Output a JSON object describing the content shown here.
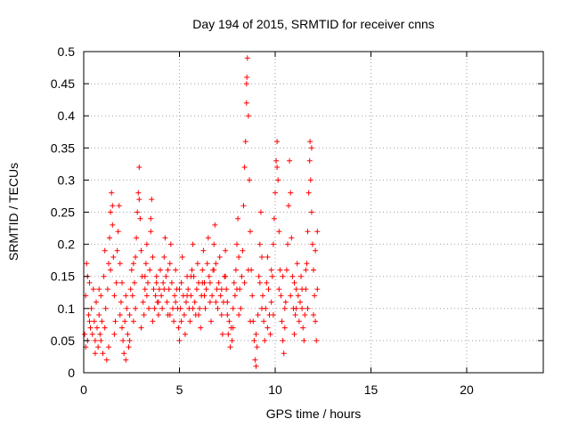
{
  "chart_data": {
    "type": "scatter",
    "title": "Day 194 of 2015, SRMTID for receiver cnns",
    "xlabel": "GPS time / hours",
    "ylabel": "SRMTID / TECUs",
    "xlim": [
      0,
      24
    ],
    "ylim": [
      0,
      0.5
    ],
    "xticks": [
      0,
      5,
      10,
      15,
      20
    ],
    "yticks": [
      0,
      0.05,
      0.1,
      0.15,
      0.2,
      0.25,
      0.3,
      0.35,
      0.4,
      0.45,
      0.5
    ],
    "xtick_labels": [
      "0",
      "5",
      "10",
      "15",
      "20"
    ],
    "ytick_labels": [
      "0",
      "0.05",
      "0.1",
      "0.15",
      "0.2",
      "0.25",
      "0.3",
      "0.35",
      "0.4",
      "0.45",
      "0.5"
    ],
    "grid": true,
    "marker": "+",
    "color": "#ff0000",
    "data_extent_hours": [
      0,
      12.2
    ],
    "series": [
      {
        "name": "SRMTID",
        "points": [
          [
            0.05,
            0.06
          ],
          [
            0.1,
            0.12
          ],
          [
            0.15,
            0.17
          ],
          [
            0.2,
            0.05
          ],
          [
            0.25,
            0.09
          ],
          [
            0.3,
            0.14
          ],
          [
            0.35,
            0.07
          ],
          [
            0.4,
            0.1
          ],
          [
            0.45,
            0.06
          ],
          [
            0.5,
            0.13
          ],
          [
            0.55,
            0.08
          ],
          [
            0.6,
            0.05
          ],
          [
            0.65,
            0.11
          ],
          [
            0.7,
            0.07
          ],
          [
            0.75,
            0.04
          ],
          [
            0.8,
            0.09
          ],
          [
            0.85,
            0.06
          ],
          [
            0.9,
            0.12
          ],
          [
            0.95,
            0.08
          ],
          [
            1.0,
            0.03
          ],
          [
            1.05,
            0.15
          ],
          [
            1.1,
            0.19
          ],
          [
            1.15,
            0.1
          ],
          [
            1.2,
            0.02
          ],
          [
            1.25,
            0.13
          ],
          [
            1.3,
            0.17
          ],
          [
            1.35,
            0.21
          ],
          [
            1.4,
            0.25
          ],
          [
            1.45,
            0.28
          ],
          [
            1.5,
            0.23
          ],
          [
            1.55,
            0.18
          ],
          [
            1.6,
            0.12
          ],
          [
            1.65,
            0.08
          ],
          [
            1.7,
            0.14
          ],
          [
            1.75,
            0.19
          ],
          [
            1.8,
            0.22
          ],
          [
            1.85,
            0.26
          ],
          [
            1.9,
            0.17
          ],
          [
            1.95,
            0.11
          ],
          [
            2.0,
            0.07
          ],
          [
            2.05,
            0.05
          ],
          [
            2.1,
            0.03
          ],
          [
            2.15,
            0.08
          ],
          [
            2.2,
            0.12
          ],
          [
            2.25,
            0.1
          ],
          [
            2.3,
            0.06
          ],
          [
            2.35,
            0.04
          ],
          [
            2.4,
            0.09
          ],
          [
            2.45,
            0.13
          ],
          [
            2.5,
            0.16
          ],
          [
            2.55,
            0.12
          ],
          [
            2.6,
            0.08
          ],
          [
            2.65,
            0.14
          ],
          [
            2.7,
            0.18
          ],
          [
            2.75,
            0.21
          ],
          [
            2.8,
            0.25
          ],
          [
            2.85,
            0.28
          ],
          [
            2.9,
            0.32
          ],
          [
            2.95,
            0.24
          ],
          [
            3.0,
            0.19
          ],
          [
            3.05,
            0.15
          ],
          [
            3.1,
            0.11
          ],
          [
            3.15,
            0.09
          ],
          [
            3.2,
            0.13
          ],
          [
            3.25,
            0.17
          ],
          [
            3.3,
            0.2
          ],
          [
            3.35,
            0.14
          ],
          [
            3.4,
            0.1
          ],
          [
            3.45,
            0.16
          ],
          [
            3.5,
            0.22
          ],
          [
            3.55,
            0.27
          ],
          [
            3.6,
            0.18
          ],
          [
            3.65,
            0.13
          ],
          [
            3.7,
            0.1
          ],
          [
            3.75,
            0.12
          ],
          [
            3.8,
            0.15
          ],
          [
            3.85,
            0.11
          ],
          [
            3.9,
            0.09
          ],
          [
            3.95,
            0.13
          ],
          [
            4.0,
            0.16
          ],
          [
            4.05,
            0.12
          ],
          [
            4.1,
            0.1
          ],
          [
            4.15,
            0.14
          ],
          [
            4.2,
            0.18
          ],
          [
            4.25,
            0.21
          ],
          [
            4.3,
            0.15
          ],
          [
            4.35,
            0.11
          ],
          [
            4.4,
            0.09
          ],
          [
            4.45,
            0.13
          ],
          [
            4.5,
            0.17
          ],
          [
            4.55,
            0.2
          ],
          [
            4.6,
            0.14
          ],
          [
            4.65,
            0.1
          ],
          [
            4.7,
            0.08
          ],
          [
            4.75,
            0.12
          ],
          [
            4.8,
            0.16
          ],
          [
            4.85,
            0.13
          ],
          [
            4.9,
            0.1
          ],
          [
            4.95,
            0.07
          ],
          [
            5.0,
            0.05
          ],
          [
            5.05,
            0.1
          ],
          [
            5.1,
            0.14
          ],
          [
            5.15,
            0.18
          ],
          [
            5.2,
            0.12
          ],
          [
            5.25,
            0.09
          ],
          [
            5.3,
            0.06
          ],
          [
            5.35,
            0.11
          ],
          [
            5.4,
            0.15
          ],
          [
            5.45,
            0.13
          ],
          [
            5.5,
            0.1
          ],
          [
            5.55,
            0.08
          ],
          [
            5.6,
            0.12
          ],
          [
            5.65,
            0.16
          ],
          [
            5.7,
            0.2
          ],
          [
            5.75,
            0.15
          ],
          [
            5.8,
            0.11
          ],
          [
            5.85,
            0.09
          ],
          [
            5.9,
            0.13
          ],
          [
            5.95,
            0.17
          ],
          [
            6.0,
            0.14
          ],
          [
            6.05,
            0.1
          ],
          [
            6.1,
            0.07
          ],
          [
            6.15,
            0.12
          ],
          [
            6.2,
            0.16
          ],
          [
            6.25,
            0.19
          ],
          [
            6.3,
            0.14
          ],
          [
            6.35,
            0.1
          ],
          [
            6.4,
            0.13
          ],
          [
            6.45,
            0.17
          ],
          [
            6.5,
            0.21
          ],
          [
            6.55,
            0.15
          ],
          [
            6.6,
            0.11
          ],
          [
            6.65,
            0.08
          ],
          [
            6.7,
            0.12
          ],
          [
            6.75,
            0.16
          ],
          [
            6.8,
            0.2
          ],
          [
            6.85,
            0.23
          ],
          [
            6.9,
            0.17
          ],
          [
            6.95,
            0.13
          ],
          [
            7.0,
            0.1
          ],
          [
            7.05,
            0.14
          ],
          [
            7.1,
            0.18
          ],
          [
            7.15,
            0.12
          ],
          [
            7.2,
            0.09
          ],
          [
            7.25,
            0.06
          ],
          [
            7.3,
            0.11
          ],
          [
            7.35,
            0.15
          ],
          [
            7.4,
            0.19
          ],
          [
            7.45,
            0.13
          ],
          [
            7.5,
            0.09
          ],
          [
            7.55,
            0.06
          ],
          [
            7.6,
            0.08
          ],
          [
            7.65,
            0.04
          ],
          [
            7.7,
            0.07
          ],
          [
            7.75,
            0.05
          ],
          [
            7.8,
            0.1
          ],
          [
            7.85,
            0.14
          ],
          [
            7.9,
            0.12
          ],
          [
            7.95,
            0.16
          ],
          [
            8.0,
            0.2
          ],
          [
            8.05,
            0.24
          ],
          [
            8.1,
            0.18
          ],
          [
            8.15,
            0.13
          ],
          [
            8.2,
            0.1
          ],
          [
            8.25,
            0.15
          ],
          [
            8.3,
            0.19
          ],
          [
            8.35,
            0.26
          ],
          [
            8.4,
            0.32
          ],
          [
            8.45,
            0.36
          ],
          [
            8.5,
            0.42
          ],
          [
            8.52,
            0.46
          ],
          [
            8.55,
            0.49
          ],
          [
            8.6,
            0.4
          ],
          [
            8.65,
            0.3
          ],
          [
            8.7,
            0.22
          ],
          [
            8.75,
            0.16
          ],
          [
            8.8,
            0.12
          ],
          [
            8.85,
            0.08
          ],
          [
            8.9,
            0.05
          ],
          [
            8.95,
            0.02
          ],
          [
            9.0,
            0.01
          ],
          [
            9.05,
            0.04
          ],
          [
            9.1,
            0.09
          ],
          [
            9.15,
            0.15
          ],
          [
            9.2,
            0.2
          ],
          [
            9.25,
            0.25
          ],
          [
            9.3,
            0.18
          ],
          [
            9.35,
            0.12
          ],
          [
            9.4,
            0.08
          ],
          [
            9.45,
            0.05
          ],
          [
            9.5,
            0.1
          ],
          [
            9.55,
            0.14
          ],
          [
            9.6,
            0.18
          ],
          [
            9.65,
            0.13
          ],
          [
            9.7,
            0.09
          ],
          [
            9.75,
            0.06
          ],
          [
            9.8,
            0.11
          ],
          [
            9.85,
            0.15
          ],
          [
            9.9,
            0.2
          ],
          [
            9.95,
            0.24
          ],
          [
            10.0,
            0.28
          ],
          [
            10.05,
            0.33
          ],
          [
            10.1,
            0.36
          ],
          [
            10.15,
            0.3
          ],
          [
            10.2,
            0.22
          ],
          [
            10.25,
            0.16
          ],
          [
            10.3,
            0.12
          ],
          [
            10.35,
            0.08
          ],
          [
            10.4,
            0.05
          ],
          [
            10.45,
            0.03
          ],
          [
            10.5,
            0.07
          ],
          [
            10.55,
            0.11
          ],
          [
            10.6,
            0.16
          ],
          [
            10.65,
            0.2
          ],
          [
            10.7,
            0.26
          ],
          [
            10.75,
            0.33
          ],
          [
            10.8,
            0.28
          ],
          [
            10.85,
            0.21
          ],
          [
            10.9,
            0.15
          ],
          [
            10.95,
            0.1
          ],
          [
            11.0,
            0.06
          ],
          [
            11.05,
            0.09
          ],
          [
            11.1,
            0.13
          ],
          [
            11.15,
            0.17
          ],
          [
            11.2,
            0.12
          ],
          [
            11.25,
            0.08
          ],
          [
            11.3,
            0.11
          ],
          [
            11.35,
            0.15
          ],
          [
            11.4,
            0.1
          ],
          [
            11.45,
            0.07
          ],
          [
            11.5,
            0.05
          ],
          [
            11.55,
            0.09
          ],
          [
            11.6,
            0.13
          ],
          [
            11.65,
            0.17
          ],
          [
            11.7,
            0.22
          ],
          [
            11.75,
            0.28
          ],
          [
            11.8,
            0.33
          ],
          [
            11.82,
            0.36
          ],
          [
            11.85,
            0.3
          ],
          [
            11.9,
            0.25
          ],
          [
            11.95,
            0.2
          ],
          [
            12.0,
            0.16
          ],
          [
            12.05,
            0.12
          ],
          [
            12.1,
            0.08
          ],
          [
            12.15,
            0.05
          ],
          [
            12.2,
            0.13
          ],
          [
            0.1,
            0.04
          ],
          [
            0.3,
            0.08
          ],
          [
            0.6,
            0.03
          ],
          [
            0.9,
            0.05
          ],
          [
            1.1,
            0.07
          ],
          [
            1.3,
            0.04
          ],
          [
            1.6,
            0.06
          ],
          [
            1.9,
            0.09
          ],
          [
            2.2,
            0.02
          ],
          [
            2.4,
            0.05
          ],
          [
            2.7,
            0.1
          ],
          [
            3.0,
            0.07
          ],
          [
            3.3,
            0.12
          ],
          [
            3.6,
            0.08
          ],
          [
            3.9,
            0.11
          ],
          [
            4.2,
            0.13
          ],
          [
            4.5,
            0.09
          ],
          [
            4.8,
            0.11
          ],
          [
            5.1,
            0.08
          ],
          [
            5.4,
            0.12
          ],
          [
            5.7,
            0.1
          ],
          [
            6.0,
            0.09
          ],
          [
            6.3,
            0.12
          ],
          [
            6.6,
            0.14
          ],
          [
            6.9,
            0.11
          ],
          [
            7.2,
            0.13
          ],
          [
            7.5,
            0.11
          ],
          [
            7.8,
            0.07
          ],
          [
            8.1,
            0.09
          ],
          [
            8.4,
            0.14
          ],
          [
            8.7,
            0.08
          ],
          [
            9.0,
            0.06
          ],
          [
            9.3,
            0.1
          ],
          [
            9.6,
            0.07
          ],
          [
            9.9,
            0.09
          ],
          [
            10.2,
            0.13
          ],
          [
            10.5,
            0.1
          ],
          [
            10.8,
            0.12
          ],
          [
            11.1,
            0.1
          ],
          [
            11.4,
            0.13
          ],
          [
            11.7,
            0.1
          ],
          [
            12.0,
            0.09
          ],
          [
            0.2,
            0.15
          ],
          [
            0.8,
            0.13
          ],
          [
            1.4,
            0.16
          ],
          [
            2.0,
            0.14
          ],
          [
            2.6,
            0.17
          ],
          [
            3.2,
            0.15
          ],
          [
            3.8,
            0.14
          ],
          [
            4.4,
            0.16
          ],
          [
            5.0,
            0.13
          ],
          [
            5.6,
            0.15
          ],
          [
            6.2,
            0.14
          ],
          [
            6.8,
            0.16
          ],
          [
            7.4,
            0.15
          ],
          [
            8.0,
            0.13
          ],
          [
            8.6,
            0.16
          ],
          [
            9.2,
            0.14
          ],
          [
            9.8,
            0.16
          ],
          [
            10.4,
            0.15
          ],
          [
            11.0,
            0.14
          ],
          [
            11.6,
            0.16
          ],
          [
            12.1,
            0.19
          ],
          [
            12.2,
            0.22
          ],
          [
            11.9,
            0.35
          ],
          [
            10.1,
            0.32
          ],
          [
            8.5,
            0.45
          ],
          [
            2.9,
            0.27
          ],
          [
            1.5,
            0.26
          ],
          [
            3.5,
            0.24
          ]
        ]
      }
    ]
  }
}
